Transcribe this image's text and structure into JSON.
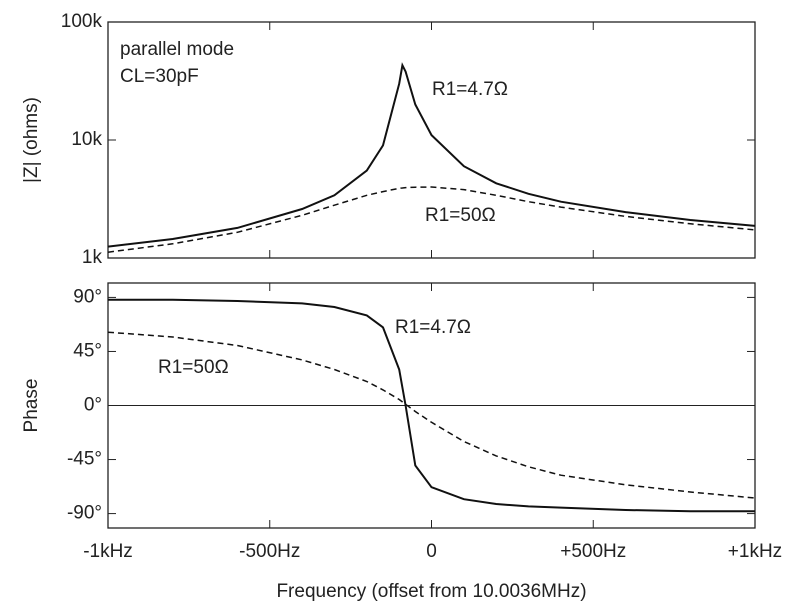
{
  "chart_data": [
    {
      "type": "line",
      "ylabel": "|Z| (ohms)",
      "log_y": true,
      "annotations": [
        "parallel mode",
        "CL=30pF"
      ],
      "x": [
        -1000,
        -800,
        -600,
        -400,
        -300,
        -200,
        -150,
        -100,
        -90,
        -80,
        -50,
        0,
        100,
        200,
        300,
        400,
        600,
        800,
        1000
      ],
      "series": [
        {
          "name": "R1=4.7Ω",
          "color": "#111111",
          "dash": false,
          "values": [
            1250,
            1450,
            1800,
            2600,
            3400,
            5500,
            9000,
            30000,
            43000,
            38000,
            20000,
            11000,
            6000,
            4300,
            3500,
            3000,
            2450,
            2100,
            1870
          ]
        },
        {
          "name": "R1=50Ω",
          "color": "#111111",
          "dash": true,
          "values": [
            1120,
            1320,
            1650,
            2300,
            2800,
            3400,
            3650,
            3900,
            3920,
            3950,
            3980,
            4000,
            3800,
            3400,
            3000,
            2700,
            2250,
            1950,
            1730
          ]
        }
      ],
      "xlim": [
        -1000,
        1000
      ],
      "ylim": [
        1000,
        100000
      ],
      "yticks": [
        {
          "value": 1000,
          "label": "1k"
        },
        {
          "value": 10000,
          "label": "10k"
        },
        {
          "value": 100000,
          "label": "100k"
        }
      ]
    },
    {
      "type": "line",
      "ylabel": "Phase",
      "xlabel": "Frequency (offset from 10.0036MHz)",
      "hline": 0,
      "x": [
        -1000,
        -800,
        -600,
        -400,
        -300,
        -200,
        -150,
        -100,
        -90,
        -80,
        -50,
        0,
        100,
        200,
        300,
        400,
        600,
        800,
        1000
      ],
      "series": [
        {
          "name": "R1=4.7Ω",
          "color": "#111111",
          "dash": false,
          "values": [
            88,
            88,
            87,
            85,
            82,
            75,
            65,
            30,
            15,
            0,
            -50,
            -68,
            -78,
            -82,
            -84,
            -85,
            -87,
            -88,
            -88
          ]
        },
        {
          "name": "R1=50Ω",
          "color": "#111111",
          "dash": true,
          "values": [
            61,
            57,
            50,
            38,
            30,
            20,
            13,
            5,
            3,
            1,
            -5,
            -14,
            -30,
            -42,
            -51,
            -58,
            -66,
            -72,
            -77
          ]
        }
      ],
      "xlim": [
        -1000,
        1000
      ],
      "xticks": [
        {
          "value": -1000,
          "label": "-1kHz"
        },
        {
          "value": -500,
          "label": "-500Hz"
        },
        0,
        {
          "value": 500,
          "label": "+500Hz"
        },
        {
          "value": 1000,
          "label": "+1kHz"
        }
      ],
      "ylim": [
        -102,
        102
      ],
      "yticks": [
        {
          "value": 90,
          "label": "90°"
        },
        {
          "value": 45,
          "label": "45°"
        },
        {
          "value": 0,
          "label": "0°"
        },
        {
          "value": -45,
          "label": "-45°"
        },
        {
          "value": -90,
          "label": "-90°"
        }
      ]
    }
  ]
}
